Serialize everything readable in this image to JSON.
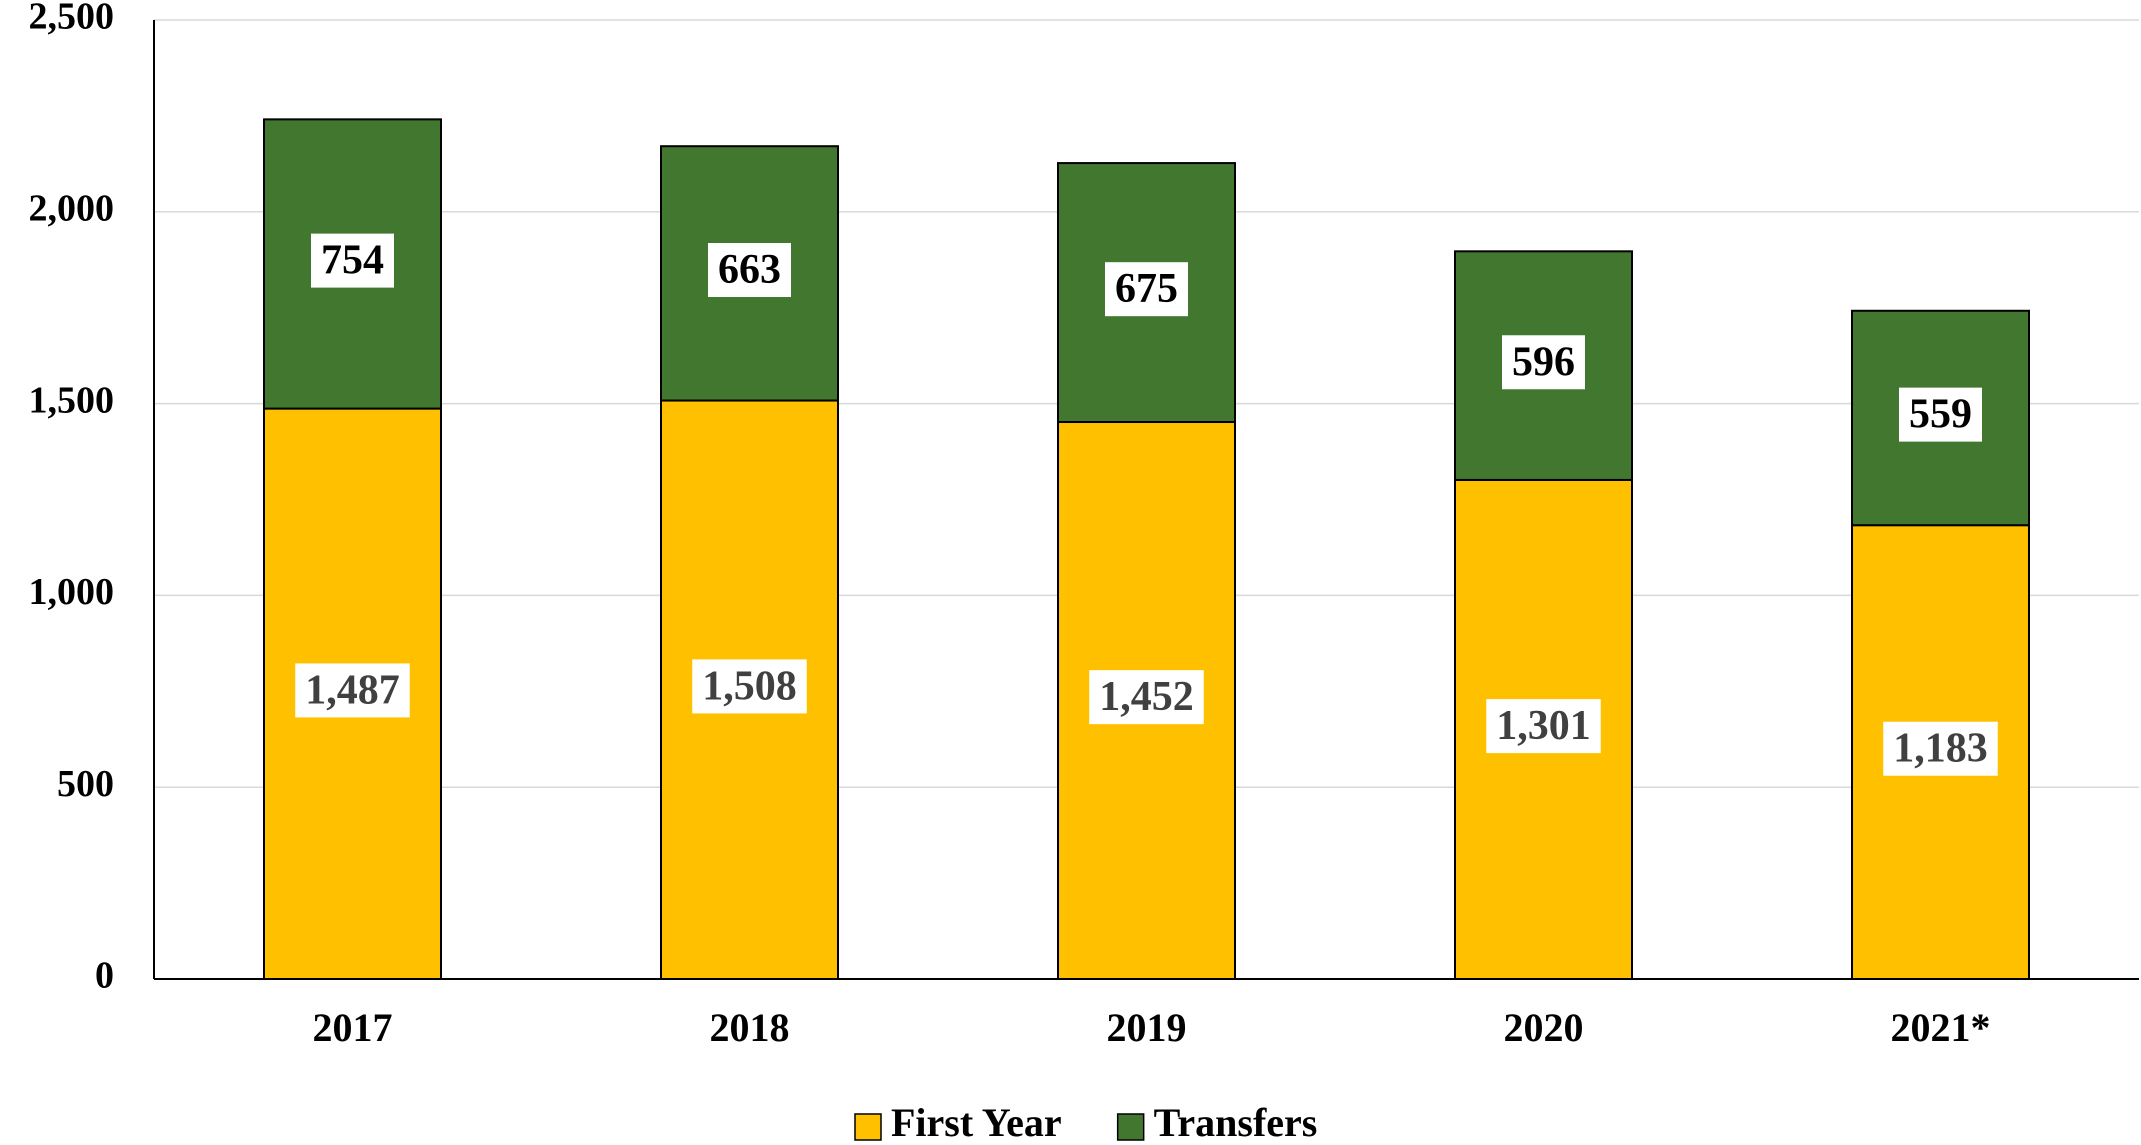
{
  "chart_data": {
    "type": "stacked_bar",
    "categories": [
      "2017",
      "2018",
      "2019",
      "2020",
      "2021*"
    ],
    "series": [
      {
        "name": "First Year",
        "color": "#ffc000",
        "values": [
          1487,
          1508,
          1452,
          1301,
          1183
        ],
        "value_labels": [
          "1,487",
          "1,508",
          "1,452",
          "1,301",
          "1,183"
        ],
        "label_color": "#404040"
      },
      {
        "name": "Transfers",
        "color": "#41772e",
        "values": [
          754,
          663,
          675,
          596,
          559
        ],
        "label_color": "#000000"
      }
    ],
    "ylim": [
      0,
      2500
    ],
    "yticks": [
      0,
      500,
      {
        "value": 1000,
        "label": "1,000"
      },
      {
        "value": 1500,
        "label": "1,500"
      },
      {
        "value": 2000,
        "label": "2,000"
      },
      {
        "value": 2500,
        "label": "2,500"
      }
    ],
    "grid": true,
    "legend": "bottom"
  }
}
